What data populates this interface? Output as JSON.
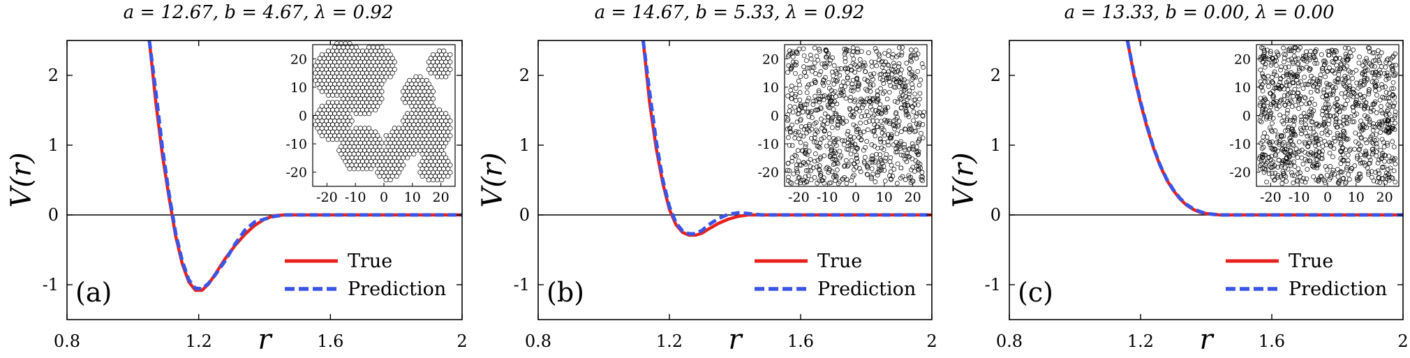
{
  "chart_data": [
    {
      "type": "line",
      "panel_label": "(a)",
      "title": "a = 12.67, b = 4.67, λ = 0.92",
      "xlabel": "r",
      "ylabel": "V(r)",
      "xlim": [
        0.8,
        2.0
      ],
      "ylim": [
        -1.5,
        2.5
      ],
      "xticks": [
        "0.8",
        "1.2",
        "r",
        "1.6",
        "2"
      ],
      "yticks": [
        "-1",
        "0",
        "1",
        "2"
      ],
      "legend_position": "lower-right",
      "series": [
        {
          "name": "True",
          "color": "#e8211d",
          "style": "solid",
          "x": [
            1.05,
            1.07,
            1.09,
            1.11,
            1.13,
            1.15,
            1.17,
            1.19,
            1.21,
            1.23,
            1.25,
            1.28,
            1.31,
            1.34,
            1.37,
            1.4,
            1.43,
            1.46,
            1.49,
            1.55,
            1.7,
            2.0
          ],
          "y": [
            2.5,
            1.6,
            0.85,
            0.25,
            -0.3,
            -0.7,
            -0.96,
            -1.08,
            -1.08,
            -0.99,
            -0.85,
            -0.63,
            -0.44,
            -0.28,
            -0.15,
            -0.06,
            -0.01,
            0.0,
            0.0,
            0.0,
            0.0,
            0.0
          ]
        },
        {
          "name": "Prediction",
          "color": "#3a55e6",
          "style": "dashed",
          "x": [
            1.05,
            1.07,
            1.09,
            1.11,
            1.13,
            1.15,
            1.17,
            1.19,
            1.21,
            1.23,
            1.25,
            1.28,
            1.31,
            1.34,
            1.37,
            1.4,
            1.43,
            1.46,
            1.49,
            1.55,
            1.7,
            2.0
          ],
          "y": [
            2.5,
            1.75,
            0.95,
            0.3,
            -0.26,
            -0.66,
            -0.93,
            -1.05,
            -1.06,
            -0.98,
            -0.86,
            -0.66,
            -0.42,
            -0.22,
            -0.1,
            -0.06,
            -0.02,
            0.0,
            0.0,
            0.0,
            0.0,
            0.0
          ]
        }
      ],
      "inset": {
        "pattern": "clusters",
        "xlim": [
          -25,
          25
        ],
        "ylim": [
          -25,
          25
        ],
        "xticks": [
          "-20",
          "-10",
          "0",
          "10",
          "20"
        ],
        "yticks": [
          "20",
          "10",
          "0",
          "-10",
          "-20"
        ]
      }
    },
    {
      "type": "line",
      "panel_label": "(b)",
      "title": "a = 14.67, b = 5.33, λ = 0.92",
      "xlabel": "r",
      "ylabel": "V(r)",
      "xlim": [
        0.8,
        2.0
      ],
      "ylim": [
        -1.5,
        2.5
      ],
      "xticks": [
        "0.8",
        "1.2",
        "r",
        "1.6",
        "2"
      ],
      "yticks": [
        "-1",
        "0",
        "1",
        "2"
      ],
      "legend_position": "lower-right",
      "series": [
        {
          "name": "True",
          "color": "#e8211d",
          "style": "solid",
          "x": [
            1.12,
            1.14,
            1.16,
            1.18,
            1.2,
            1.22,
            1.24,
            1.26,
            1.28,
            1.3,
            1.32,
            1.35,
            1.38,
            1.41,
            1.44,
            1.48,
            1.55,
            1.7,
            2.0
          ],
          "y": [
            2.5,
            1.6,
            0.95,
            0.45,
            0.08,
            -0.14,
            -0.25,
            -0.29,
            -0.29,
            -0.26,
            -0.2,
            -0.12,
            -0.06,
            -0.02,
            0.0,
            0.0,
            0.0,
            0.0,
            0.0
          ]
        },
        {
          "name": "Prediction",
          "color": "#3a55e6",
          "style": "dashed",
          "x": [
            1.12,
            1.14,
            1.16,
            1.18,
            1.2,
            1.22,
            1.24,
            1.26,
            1.28,
            1.3,
            1.32,
            1.35,
            1.38,
            1.41,
            1.44,
            1.48,
            1.55,
            1.7,
            2.0
          ],
          "y": [
            2.5,
            1.75,
            1.05,
            0.5,
            0.12,
            -0.11,
            -0.23,
            -0.27,
            -0.27,
            -0.22,
            -0.14,
            -0.05,
            0.01,
            0.03,
            0.02,
            0.0,
            0.0,
            0.0,
            0.0
          ]
        }
      ],
      "inset": {
        "pattern": "dense",
        "xlim": [
          -25,
          25
        ],
        "ylim": [
          -25,
          25
        ],
        "xticks": [
          "-20",
          "-10",
          "0",
          "10",
          "20"
        ],
        "yticks": [
          "20",
          "10",
          "0",
          "-10",
          "-20"
        ]
      }
    },
    {
      "type": "line",
      "panel_label": "(c)",
      "title": "a = 13.33, b = 0.00, λ = 0.00",
      "xlabel": "r",
      "ylabel": "V(r)",
      "xlim": [
        0.8,
        2.0
      ],
      "ylim": [
        -1.5,
        2.5
      ],
      "xticks": [
        "0.8",
        "1.2",
        "r",
        "1.6",
        "2"
      ],
      "yticks": [
        "-1",
        "0",
        "1",
        "2"
      ],
      "legend_position": "lower-right",
      "series": [
        {
          "name": "True",
          "color": "#e8211d",
          "style": "solid",
          "x": [
            1.16,
            1.18,
            1.2,
            1.22,
            1.24,
            1.26,
            1.28,
            1.3,
            1.32,
            1.34,
            1.36,
            1.38,
            1.4,
            1.42,
            1.44,
            1.46,
            1.5,
            1.7,
            2.0
          ],
          "y": [
            2.5,
            2.0,
            1.6,
            1.25,
            0.95,
            0.7,
            0.5,
            0.35,
            0.23,
            0.14,
            0.08,
            0.04,
            0.02,
            0.01,
            0.0,
            0.0,
            0.0,
            0.0,
            0.0
          ]
        },
        {
          "name": "Prediction",
          "color": "#3a55e6",
          "style": "dashed",
          "x": [
            1.16,
            1.18,
            1.2,
            1.22,
            1.24,
            1.26,
            1.28,
            1.3,
            1.32,
            1.34,
            1.36,
            1.38,
            1.4,
            1.42,
            1.44,
            1.46,
            1.5,
            1.7,
            2.0
          ],
          "y": [
            2.5,
            2.02,
            1.62,
            1.27,
            0.96,
            0.71,
            0.51,
            0.36,
            0.24,
            0.15,
            0.09,
            0.05,
            0.02,
            0.01,
            0.0,
            0.0,
            0.0,
            0.0,
            0.0
          ]
        }
      ],
      "inset": {
        "pattern": "uniform",
        "xlim": [
          -25,
          25
        ],
        "ylim": [
          -25,
          25
        ],
        "xticks": [
          "-20",
          "-10",
          "0",
          "10",
          "20"
        ],
        "yticks": [
          "20",
          "10",
          "0",
          "-10",
          "-20"
        ]
      }
    }
  ]
}
